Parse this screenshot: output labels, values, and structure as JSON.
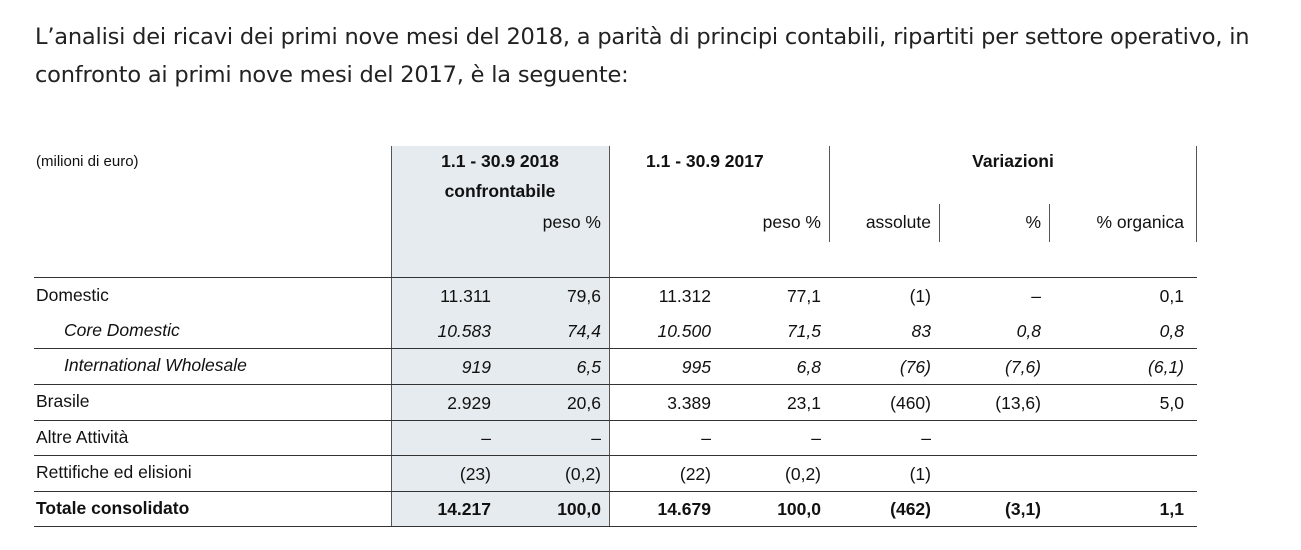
{
  "intro_text": "L’analisi dei ricavi dei primi nove mesi del 2018, a parità di principi contabili, ripartiti per settore operativo, in confronto ai primi nove mesi del 2017, è la seguente:",
  "table": {
    "unit_label": "(milioni di euro)",
    "header": {
      "period_2018": "1.1 - 30.9 2018",
      "period_2018_sub": "confrontabile",
      "period_2017": "1.1 - 30.9 2017",
      "variazioni": "Variazioni",
      "peso_2018": "peso %",
      "peso_2017": "peso %",
      "assolute": "assolute",
      "pct": "%",
      "pct_organica": "% organica"
    },
    "rows": [
      {
        "label": "Domestic",
        "v2018": "11.311",
        "p2018": "79,6",
        "v2017": "11.312",
        "p2017": "77,1",
        "abs": "(1)",
        "pct": "–",
        "org": "0,1"
      },
      {
        "label": "Core Domestic",
        "v2018": "10.583",
        "p2018": "74,4",
        "v2017": "10.500",
        "p2017": "71,5",
        "abs": "83",
        "pct": "0,8",
        "org": "0,8"
      },
      {
        "label": "International Wholesale",
        "v2018": "919",
        "p2018": "6,5",
        "v2017": "995",
        "p2017": "6,8",
        "abs": "(76)",
        "pct": "(7,6)",
        "org": "(6,1)"
      },
      {
        "label": "Brasile",
        "v2018": "2.929",
        "p2018": "20,6",
        "v2017": "3.389",
        "p2017": "23,1",
        "abs": "(460)",
        "pct": "(13,6)",
        "org": "5,0"
      },
      {
        "label": "Altre Attività",
        "v2018": "–",
        "p2018": "–",
        "v2017": "–",
        "p2017": "–",
        "abs": "–",
        "pct": "",
        "org": ""
      },
      {
        "label": "Rettifiche ed elisioni",
        "v2018": "(23)",
        "p2018": "(0,2)",
        "v2017": "(22)",
        "p2017": "(0,2)",
        "abs": "(1)",
        "pct": "",
        "org": ""
      },
      {
        "label": "Totale consolidato",
        "v2018": "14.217",
        "p2018": "100,0",
        "v2017": "14.679",
        "p2017": "100,0",
        "abs": "(462)",
        "pct": "(3,1)",
        "org": "1,1"
      }
    ]
  }
}
